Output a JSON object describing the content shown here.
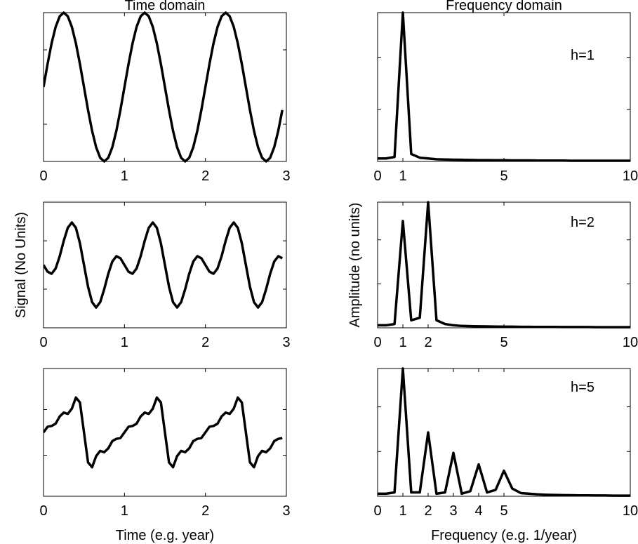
{
  "chart_data": [
    {
      "type": "line",
      "title": "Time domain",
      "color": "#000000",
      "x": [
        0,
        0.05,
        0.1,
        0.15,
        0.2,
        0.25,
        0.3,
        0.35,
        0.4,
        0.45,
        0.5,
        0.55,
        0.6,
        0.65,
        0.7,
        0.75,
        0.8,
        0.85,
        0.9,
        0.95,
        1,
        1.05,
        1.1,
        1.15,
        1.2,
        1.25,
        1.3,
        1.35,
        1.4,
        1.45,
        1.5,
        1.55,
        1.6,
        1.65,
        1.7,
        1.75,
        1.8,
        1.85,
        1.9,
        1.95,
        2,
        2.05,
        2.1,
        2.15,
        2.2,
        2.25,
        2.3,
        2.35,
        2.4,
        2.45,
        2.5,
        2.55,
        2.6,
        2.65,
        2.7,
        2.75,
        2.8,
        2.85,
        2.9,
        2.95
      ],
      "values": [
        0,
        0.309,
        0.588,
        0.809,
        0.951,
        1,
        0.951,
        0.809,
        0.588,
        0.309,
        0,
        -0.309,
        -0.588,
        -0.809,
        -0.951,
        -1,
        -0.951,
        -0.809,
        -0.588,
        -0.309,
        0,
        0.309,
        0.588,
        0.809,
        0.951,
        1,
        0.951,
        0.809,
        0.588,
        0.309,
        0,
        -0.309,
        -0.588,
        -0.809,
        -0.951,
        -1,
        -0.951,
        -0.809,
        -0.588,
        -0.309,
        0,
        0.309,
        0.588,
        0.809,
        0.951,
        1,
        0.951,
        0.809,
        0.588,
        0.309,
        0,
        -0.309,
        -0.588,
        -0.809,
        -0.951,
        -1,
        -0.951,
        -0.809,
        -0.588,
        -0.309
      ],
      "xlim": [
        0,
        3
      ],
      "ylim": [
        -1,
        1
      ],
      "xticks": [
        0,
        1,
        2,
        3
      ],
      "yticks": [
        -0.5,
        0.5
      ]
    },
    {
      "type": "line",
      "title": "Frequency domain",
      "annotation": "h=1",
      "color": "#000000",
      "x": [
        0,
        0.33,
        0.67,
        1,
        1.33,
        1.67,
        2,
        2.33,
        2.67,
        3,
        3.33,
        3.67,
        4,
        4.33,
        4.67,
        5,
        5.33,
        5.67,
        6,
        6.33,
        6.67,
        7,
        7.33,
        7.67,
        8,
        8.33,
        8.67,
        9,
        9.33,
        9.67,
        10
      ],
      "values": [
        0.02,
        0.02,
        0.03,
        1,
        0.05,
        0.025,
        0.02,
        0.015,
        0.013,
        0.012,
        0.011,
        0.01,
        0.009,
        0.009,
        0.008,
        0.008,
        0.007,
        0.007,
        0.007,
        0.006,
        0.006,
        0.006,
        0.006,
        0.005,
        0.005,
        0.005,
        0.005,
        0.005,
        0.005,
        0.005,
        0.005
      ],
      "xlim": [
        0,
        10
      ],
      "ylim": [
        0,
        1
      ],
      "xticks": [
        0,
        1,
        5,
        10
      ],
      "yticks": [
        0.35,
        0.7
      ]
    },
    {
      "type": "line",
      "ylabel": "Signal (No Units)",
      "color": "#000000",
      "x": [
        0,
        0.05,
        0.1,
        0.15,
        0.2,
        0.25,
        0.3,
        0.35,
        0.4,
        0.45,
        0.5,
        0.55,
        0.6,
        0.65,
        0.7,
        0.75,
        0.8,
        0.85,
        0.9,
        0.95,
        1,
        1.05,
        1.1,
        1.15,
        1.2,
        1.25,
        1.3,
        1.35,
        1.4,
        1.45,
        1.5,
        1.55,
        1.6,
        1.65,
        1.7,
        1.75,
        1.8,
        1.85,
        1.9,
        1.95,
        2,
        2.05,
        2.1,
        2.15,
        2.2,
        2.25,
        2.3,
        2.35,
        2.4,
        2.45,
        2.5,
        2.55,
        2.6,
        2.65,
        2.7,
        2.75,
        2.8,
        2.85,
        2.9,
        2.95
      ],
      "values": [
        0,
        -0.279,
        -0.363,
        -0.142,
        0.363,
        1,
        1.539,
        1.76,
        1.539,
        0.897,
        0,
        -0.897,
        -1.539,
        -1.76,
        -1.539,
        -1,
        -0.363,
        0.142,
        0.363,
        0.279,
        0,
        -0.279,
        -0.363,
        -0.142,
        0.363,
        1,
        1.539,
        1.76,
        1.539,
        0.897,
        0,
        -0.897,
        -1.539,
        -1.76,
        -1.539,
        -1,
        -0.363,
        0.142,
        0.363,
        0.279,
        0,
        -0.279,
        -0.363,
        -0.142,
        0.363,
        1,
        1.539,
        1.76,
        1.539,
        0.897,
        0,
        -0.897,
        -1.539,
        -1.76,
        -1.539,
        -1,
        -0.363,
        0.142,
        0.363,
        0.279
      ],
      "xlim": [
        0,
        3
      ],
      "ylim": [
        -2.6,
        2.6
      ],
      "xticks": [
        0,
        1,
        2,
        3
      ],
      "yticks": [
        -1,
        1
      ]
    },
    {
      "type": "line",
      "ylabel": "Amplitude (no units)",
      "annotation": "h=2",
      "color": "#000000",
      "x": [
        0,
        0.33,
        0.67,
        1,
        1.33,
        1.67,
        2,
        2.33,
        2.67,
        3,
        3.33,
        3.67,
        4,
        4.33,
        4.67,
        5,
        5.33,
        5.67,
        6,
        6.33,
        6.67,
        7,
        7.33,
        7.67,
        8,
        8.33,
        8.67,
        9,
        9.33,
        9.67,
        10
      ],
      "values": [
        0.02,
        0.02,
        0.03,
        0.85,
        0.06,
        0.08,
        1,
        0.06,
        0.03,
        0.02,
        0.015,
        0.013,
        0.012,
        0.011,
        0.01,
        0.009,
        0.009,
        0.008,
        0.008,
        0.007,
        0.007,
        0.007,
        0.006,
        0.006,
        0.006,
        0.006,
        0.005,
        0.005,
        0.005,
        0.005,
        0.005
      ],
      "xlim": [
        0,
        10
      ],
      "ylim": [
        0,
        1
      ],
      "xticks": [
        0,
        1,
        2,
        5,
        10
      ],
      "yticks": [
        0.35,
        0.7
      ]
    },
    {
      "type": "line",
      "xlabel": "Time (e.g. year)",
      "color": "#000000",
      "x": [
        0,
        0.05,
        0.1,
        0.15,
        0.2,
        0.25,
        0.3,
        0.35,
        0.4,
        0.45,
        0.5,
        0.55,
        0.6,
        0.65,
        0.7,
        0.75,
        0.8,
        0.85,
        0.9,
        0.95,
        1,
        1.05,
        1.1,
        1.15,
        1.2,
        1.25,
        1.3,
        1.35,
        1.4,
        1.45,
        1.5,
        1.55,
        1.6,
        1.65,
        1.7,
        1.75,
        1.8,
        1.85,
        1.9,
        1.95,
        2,
        2.05,
        2.1,
        2.15,
        2.2,
        2.25,
        2.3,
        2.35,
        2.4,
        2.45,
        2.5,
        2.55,
        2.6,
        2.65,
        2.7,
        2.75,
        2.8,
        2.85,
        2.9,
        2.95
      ],
      "values": [
        0,
        0.247,
        0.282,
        0.383,
        0.699,
        0.867,
        0.811,
        1.041,
        1.528,
        1.311,
        0,
        -1.311,
        -1.528,
        -1.041,
        -0.811,
        -0.867,
        -0.699,
        -0.383,
        -0.282,
        -0.247,
        0,
        0.247,
        0.282,
        0.383,
        0.699,
        0.867,
        0.811,
        1.041,
        1.528,
        1.311,
        0,
        -1.311,
        -1.528,
        -1.041,
        -0.811,
        -0.867,
        -0.699,
        -0.383,
        -0.282,
        -0.247,
        0,
        0.247,
        0.282,
        0.383,
        0.699,
        0.867,
        0.811,
        1.041,
        1.528,
        1.311,
        0,
        -1.311,
        -1.528,
        -1.041,
        -0.811,
        -0.867,
        -0.699,
        -0.383,
        -0.282,
        -0.247
      ],
      "xlim": [
        0,
        3
      ],
      "ylim": [
        -2.8,
        2.8
      ],
      "xticks": [
        0,
        1,
        2,
        3
      ],
      "yticks": [
        -1,
        1
      ]
    },
    {
      "type": "line",
      "xlabel": "Frequency (e.g. 1/year)",
      "annotation": "h=5",
      "color": "#000000",
      "x": [
        0,
        0.33,
        0.67,
        1,
        1.33,
        1.67,
        2,
        2.33,
        2.67,
        3,
        3.33,
        3.67,
        4,
        4.33,
        4.67,
        5,
        5.33,
        5.67,
        6,
        6.33,
        6.67,
        7,
        7.33,
        7.67,
        8,
        8.33,
        8.67,
        9,
        9.33,
        9.67,
        10
      ],
      "values": [
        0.02,
        0.02,
        0.03,
        1,
        0.03,
        0.03,
        0.5,
        0.02,
        0.03,
        0.34,
        0.02,
        0.04,
        0.25,
        0.03,
        0.05,
        0.2,
        0.06,
        0.025,
        0.02,
        0.015,
        0.012,
        0.01,
        0.009,
        0.008,
        0.007,
        0.007,
        0.006,
        0.006,
        0.005,
        0.005,
        0.005
      ],
      "xlim": [
        0,
        10
      ],
      "ylim": [
        0,
        1
      ],
      "xticks": [
        0,
        1,
        2,
        3,
        4,
        5,
        10
      ],
      "yticks": [
        0.35,
        0.7
      ]
    }
  ]
}
